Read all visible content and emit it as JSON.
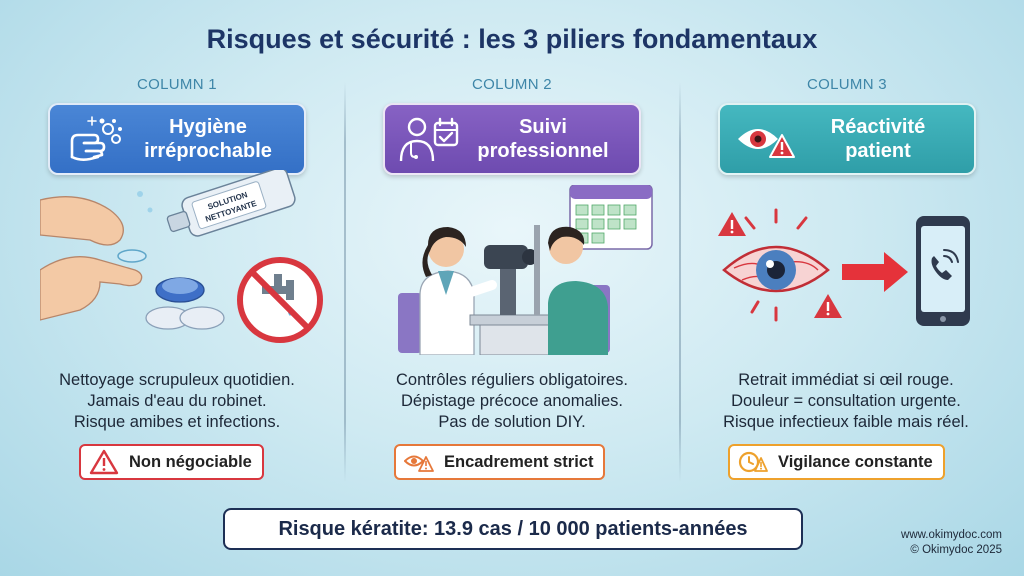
{
  "title": "Risques et sécurité : les 3 piliers fondamentaux",
  "columns": [
    {
      "label": "COLUMN 1",
      "header": "Hygiène irréprochable",
      "header_color": "#3b78cc",
      "icon": "hand-washing-icon",
      "bottle_text_1": "SOLUTION",
      "bottle_text_2": "NETTOYANTE",
      "lines": [
        "Nettoyage scrupuleux quotidien.",
        "Jamais d'eau du robinet.",
        "Risque amibes et infections."
      ],
      "badge": "Non négociable",
      "badge_color": "#d8373f",
      "badge_icon": "warning-icon"
    },
    {
      "label": "COLUMN 2",
      "header": "Suivi professionnel",
      "header_color": "#7653b6",
      "icon": "doctor-calendar-icon",
      "lines": [
        "Contrôles réguliers obligatoires.",
        "Dépistage précoce anomalies.",
        "Pas de solution DIY."
      ],
      "badge": "Encadrement strict",
      "badge_color": "#e6783a",
      "badge_icon": "eye-warning-icon"
    },
    {
      "label": "COLUMN 3",
      "header": "Réactivité patient",
      "header_color": "#38aab3",
      "icon": "red-eye-warning-icon",
      "lines": [
        "Retrait immédiat si œil rouge.",
        "Douleur = consultation urgente.",
        "Risque infectieux faible mais réel."
      ],
      "badge": "Vigilance constante",
      "badge_color": "#eea12c",
      "badge_icon": "clock-warning-icon"
    }
  ],
  "stat": "Risque kératite: 13.9 cas / 10 000 patients-années",
  "footer": {
    "website": "www.okimydoc.com",
    "copyright": "© Okimydoc 2025"
  }
}
